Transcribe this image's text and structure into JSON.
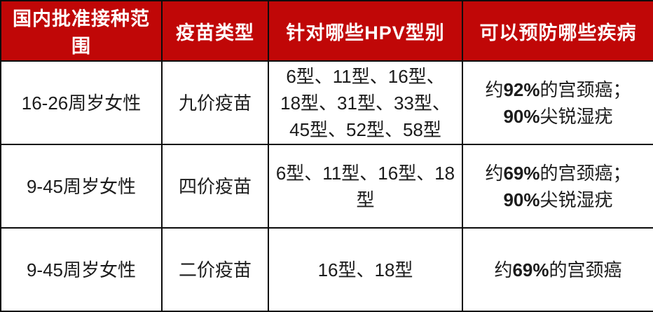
{
  "colors": {
    "header_bg": "#c00707",
    "header_text": "#ffffff",
    "border": "#0c0c0c",
    "body_text": "#1c1c1c",
    "body_bg": "#ffffff"
  },
  "chart_data": {
    "type": "table",
    "columns": [
      "国内批准接种范围",
      "疫苗类型",
      "针对哪些HPV型别",
      "可以预防哪些疾病"
    ],
    "rows": [
      [
        "16-26周岁女性",
        "九价疫苗",
        "6型、11型、16型、18型、31型、33型、45型、52型、58型",
        "约92%的宫颈癌；90%尖锐湿疣"
      ],
      [
        "9-45周岁女性",
        "四价疫苗",
        "6型、11型、16型、18型",
        "约69%的宫颈癌；90%尖锐湿疣"
      ],
      [
        "9-45周岁女性",
        "二价疫苗",
        "16型、18型",
        "约69%的宫颈癌"
      ]
    ]
  },
  "table": {
    "columns": [
      "国内批准接种范围",
      "疫苗类型",
      "针对哪些HPV型别",
      "可以预防哪些疾病"
    ],
    "rows": [
      {
        "approved_range": "16-26周岁女性",
        "vaccine_type": "九价疫苗",
        "hpv_types": [
          [
            {
              "t": "6型、11型、16型、"
            }
          ],
          [
            {
              "t": "18型、31型、33型、"
            }
          ],
          [
            {
              "t": "45型、52型、58型"
            }
          ]
        ],
        "prevents": [
          [
            {
              "t": "约"
            },
            {
              "t": "92%",
              "b": true
            },
            {
              "t": "的宫颈癌；"
            }
          ],
          [
            {
              "t": "90%",
              "b": true
            },
            {
              "t": "尖锐湿疣"
            }
          ]
        ]
      },
      {
        "approved_range": "9-45周岁女性",
        "vaccine_type": "四价疫苗",
        "hpv_types": [
          [
            {
              "t": "6型、11型、16型、18型"
            }
          ]
        ],
        "prevents": [
          [
            {
              "t": "约"
            },
            {
              "t": "69%",
              "b": true
            },
            {
              "t": "的宫颈癌；"
            }
          ],
          [
            {
              "t": "90%",
              "b": true
            },
            {
              "t": "尖锐湿疣"
            }
          ]
        ]
      },
      {
        "approved_range": "9-45周岁女性",
        "vaccine_type": "二价疫苗",
        "hpv_types": [
          [
            {
              "t": "16型、18型"
            }
          ]
        ],
        "prevents": [
          [
            {
              "t": "约"
            },
            {
              "t": "69%",
              "b": true
            },
            {
              "t": "的宫颈癌"
            }
          ]
        ]
      }
    ]
  }
}
